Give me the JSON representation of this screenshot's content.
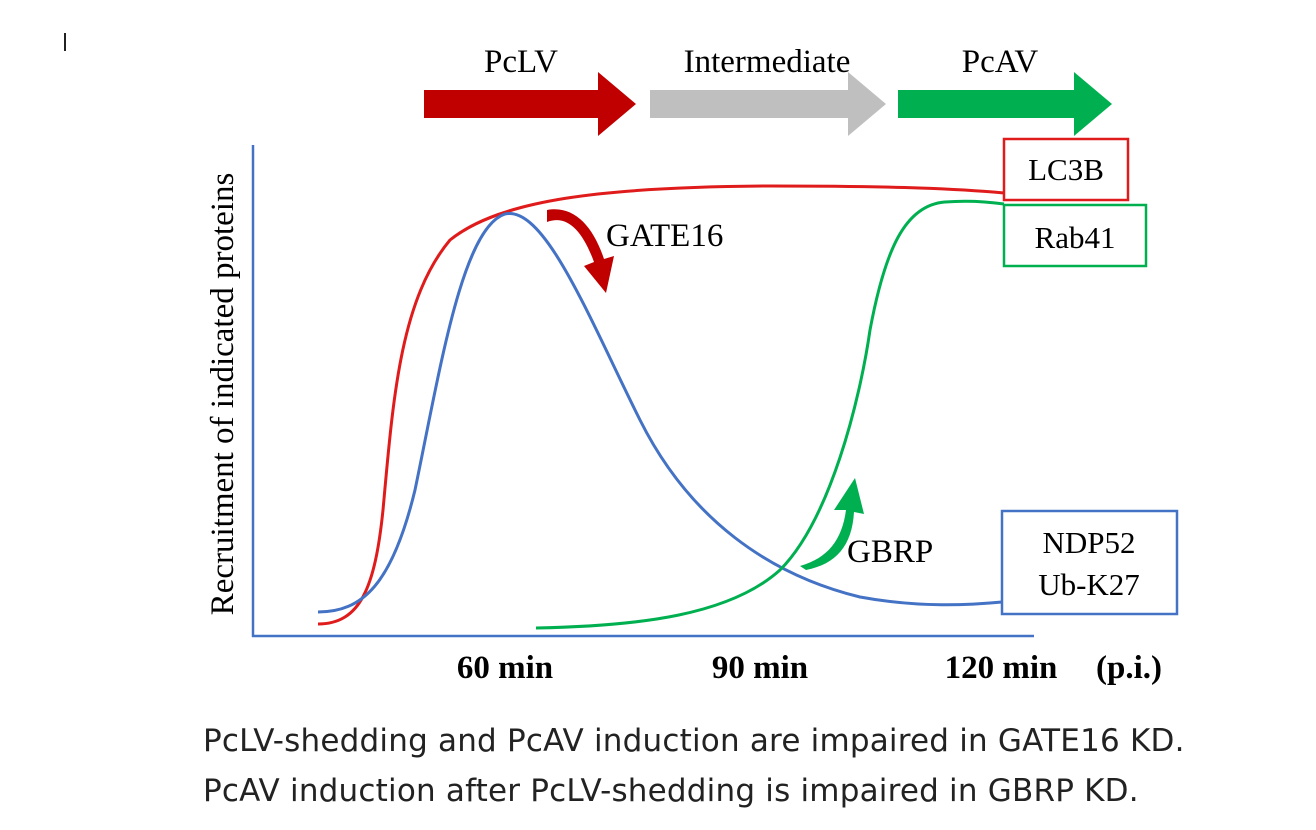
{
  "colors": {
    "red": "#e01b1b",
    "dark_red": "#c00000",
    "gray": "#bfbfbf",
    "green": "#00b050",
    "blue": "#4472c4",
    "axis": "#4472c4",
    "text": "#000000"
  },
  "phases": [
    {
      "label": "PcLV",
      "color": "#c00000"
    },
    {
      "label": "Intermediate",
      "color": "#bfbfbf"
    },
    {
      "label": "PcAV",
      "color": "#00b050"
    }
  ],
  "axis": {
    "ylabel": "Recruitment of indicated proteins",
    "ticks": [
      "60 min",
      "90 min",
      "120 min"
    ],
    "unit": "(p.i.)"
  },
  "curves": {
    "lc3b": {
      "label": "LC3B",
      "color": "#e01b1b"
    },
    "gate16_curve": {
      "color": "#4472c4"
    },
    "rab41": {
      "label": "Rab41",
      "color": "#00b050"
    },
    "ndp52": {
      "label_line1": "NDP52",
      "label_line2": "Ub-K27",
      "color": "#4472c4"
    }
  },
  "annotations": {
    "gate16": {
      "label": "GATE16",
      "color": "#c00000"
    },
    "gbrp": {
      "label": "GBRP",
      "color": "#00b050"
    }
  },
  "caption": {
    "line1": "PcLV-shedding and PcAV induction are impaired in GATE16 KD.",
    "line2": "PcAV induction after PcLV-shedding is impaired in GBRP KD."
  }
}
